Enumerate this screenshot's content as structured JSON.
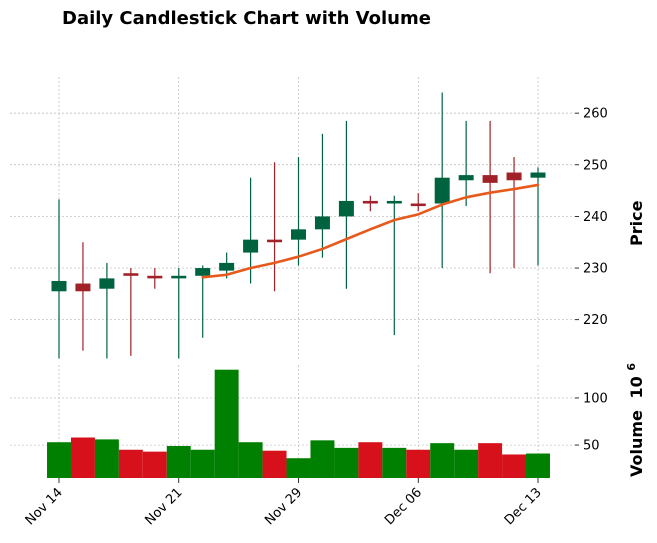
{
  "chart_data": {
    "type": "candlestick",
    "title": "Daily Candlestick Chart with Volume",
    "price_label": "Price",
    "volume_label": "Volume",
    "volume_exponent_label": "10",
    "volume_exponent_power": "6",
    "up_color": "#006340",
    "down_color": "#a02128",
    "volume_up_color": "#008000",
    "volume_down_color": "#d6111b",
    "ma_color": "#e8591c",
    "price_ylim": [
      212,
      267
    ],
    "price_ticks": [
      220,
      230,
      240,
      250,
      260
    ],
    "volume_ylim": [
      15,
      135
    ],
    "volume_ticks": [
      50,
      100
    ],
    "x_tick_labels": [
      {
        "index": 0,
        "label": "Nov 14"
      },
      {
        "index": 5,
        "label": "Nov 21"
      },
      {
        "index": 10,
        "label": "Nov 29"
      },
      {
        "index": 15,
        "label": "Dec 06"
      },
      {
        "index": 20,
        "label": "Dec 13"
      }
    ],
    "candles": [
      {
        "open": 225.5,
        "high": 243.3,
        "low": 212.5,
        "close": 227.5,
        "volume": 53
      },
      {
        "open": 227.0,
        "high": 235.0,
        "low": 214.0,
        "close": 225.5,
        "volume": 58
      },
      {
        "open": 226.0,
        "high": 231.0,
        "low": 212.5,
        "close": 228.0,
        "volume": 56
      },
      {
        "open": 229.0,
        "high": 230.0,
        "low": 213.0,
        "close": 228.5,
        "volume": 45
      },
      {
        "open": 228.5,
        "high": 230.0,
        "low": 226.0,
        "close": 228.0,
        "volume": 43
      },
      {
        "open": 228.0,
        "high": 230.0,
        "low": 212.5,
        "close": 228.5,
        "volume": 49
      },
      {
        "open": 228.5,
        "high": 230.5,
        "low": 216.5,
        "close": 230.0,
        "volume": 45
      },
      {
        "open": 229.5,
        "high": 233.0,
        "low": 228.0,
        "close": 231.0,
        "volume": 130
      },
      {
        "open": 233.0,
        "high": 247.5,
        "low": 227.0,
        "close": 235.5,
        "volume": 53
      },
      {
        "open": 235.5,
        "high": 250.5,
        "low": 225.5,
        "close": 235.0,
        "volume": 44
      },
      {
        "open": 235.5,
        "high": 251.5,
        "low": 230.5,
        "close": 237.5,
        "volume": 36
      },
      {
        "open": 237.5,
        "high": 256.0,
        "low": 232.0,
        "close": 240.0,
        "volume": 55
      },
      {
        "open": 240.0,
        "high": 258.5,
        "low": 226.0,
        "close": 243.0,
        "volume": 47
      },
      {
        "open": 243.0,
        "high": 244.0,
        "low": 241.0,
        "close": 242.5,
        "volume": 53
      },
      {
        "open": 242.5,
        "high": 244.0,
        "low": 217.0,
        "close": 243.0,
        "volume": 47
      },
      {
        "open": 242.5,
        "high": 244.5,
        "low": 241.0,
        "close": 242.0,
        "volume": 45
      },
      {
        "open": 242.5,
        "high": 264.0,
        "low": 230.0,
        "close": 247.5,
        "volume": 52
      },
      {
        "open": 247.0,
        "high": 258.5,
        "low": 242.0,
        "close": 248.0,
        "volume": 45
      },
      {
        "open": 248.0,
        "high": 258.5,
        "low": 229.0,
        "close": 246.5,
        "volume": 52
      },
      {
        "open": 248.5,
        "high": 251.5,
        "low": 230.0,
        "close": 247.0,
        "volume": 40
      },
      {
        "open": 247.5,
        "high": 249.5,
        "low": 230.5,
        "close": 248.5,
        "volume": 41
      }
    ],
    "moving_average": [
      {
        "index": 6,
        "value": 228.2
      },
      {
        "index": 7,
        "value": 228.7
      },
      {
        "index": 8,
        "value": 230.0
      },
      {
        "index": 9,
        "value": 231.0
      },
      {
        "index": 10,
        "value": 232.2
      },
      {
        "index": 11,
        "value": 233.7
      },
      {
        "index": 12,
        "value": 235.6
      },
      {
        "index": 13,
        "value": 237.5
      },
      {
        "index": 14,
        "value": 239.3
      },
      {
        "index": 15,
        "value": 240.4
      },
      {
        "index": 16,
        "value": 242.3
      },
      {
        "index": 17,
        "value": 243.7
      },
      {
        "index": 18,
        "value": 244.6
      },
      {
        "index": 19,
        "value": 245.3
      },
      {
        "index": 20,
        "value": 246.1
      }
    ]
  }
}
